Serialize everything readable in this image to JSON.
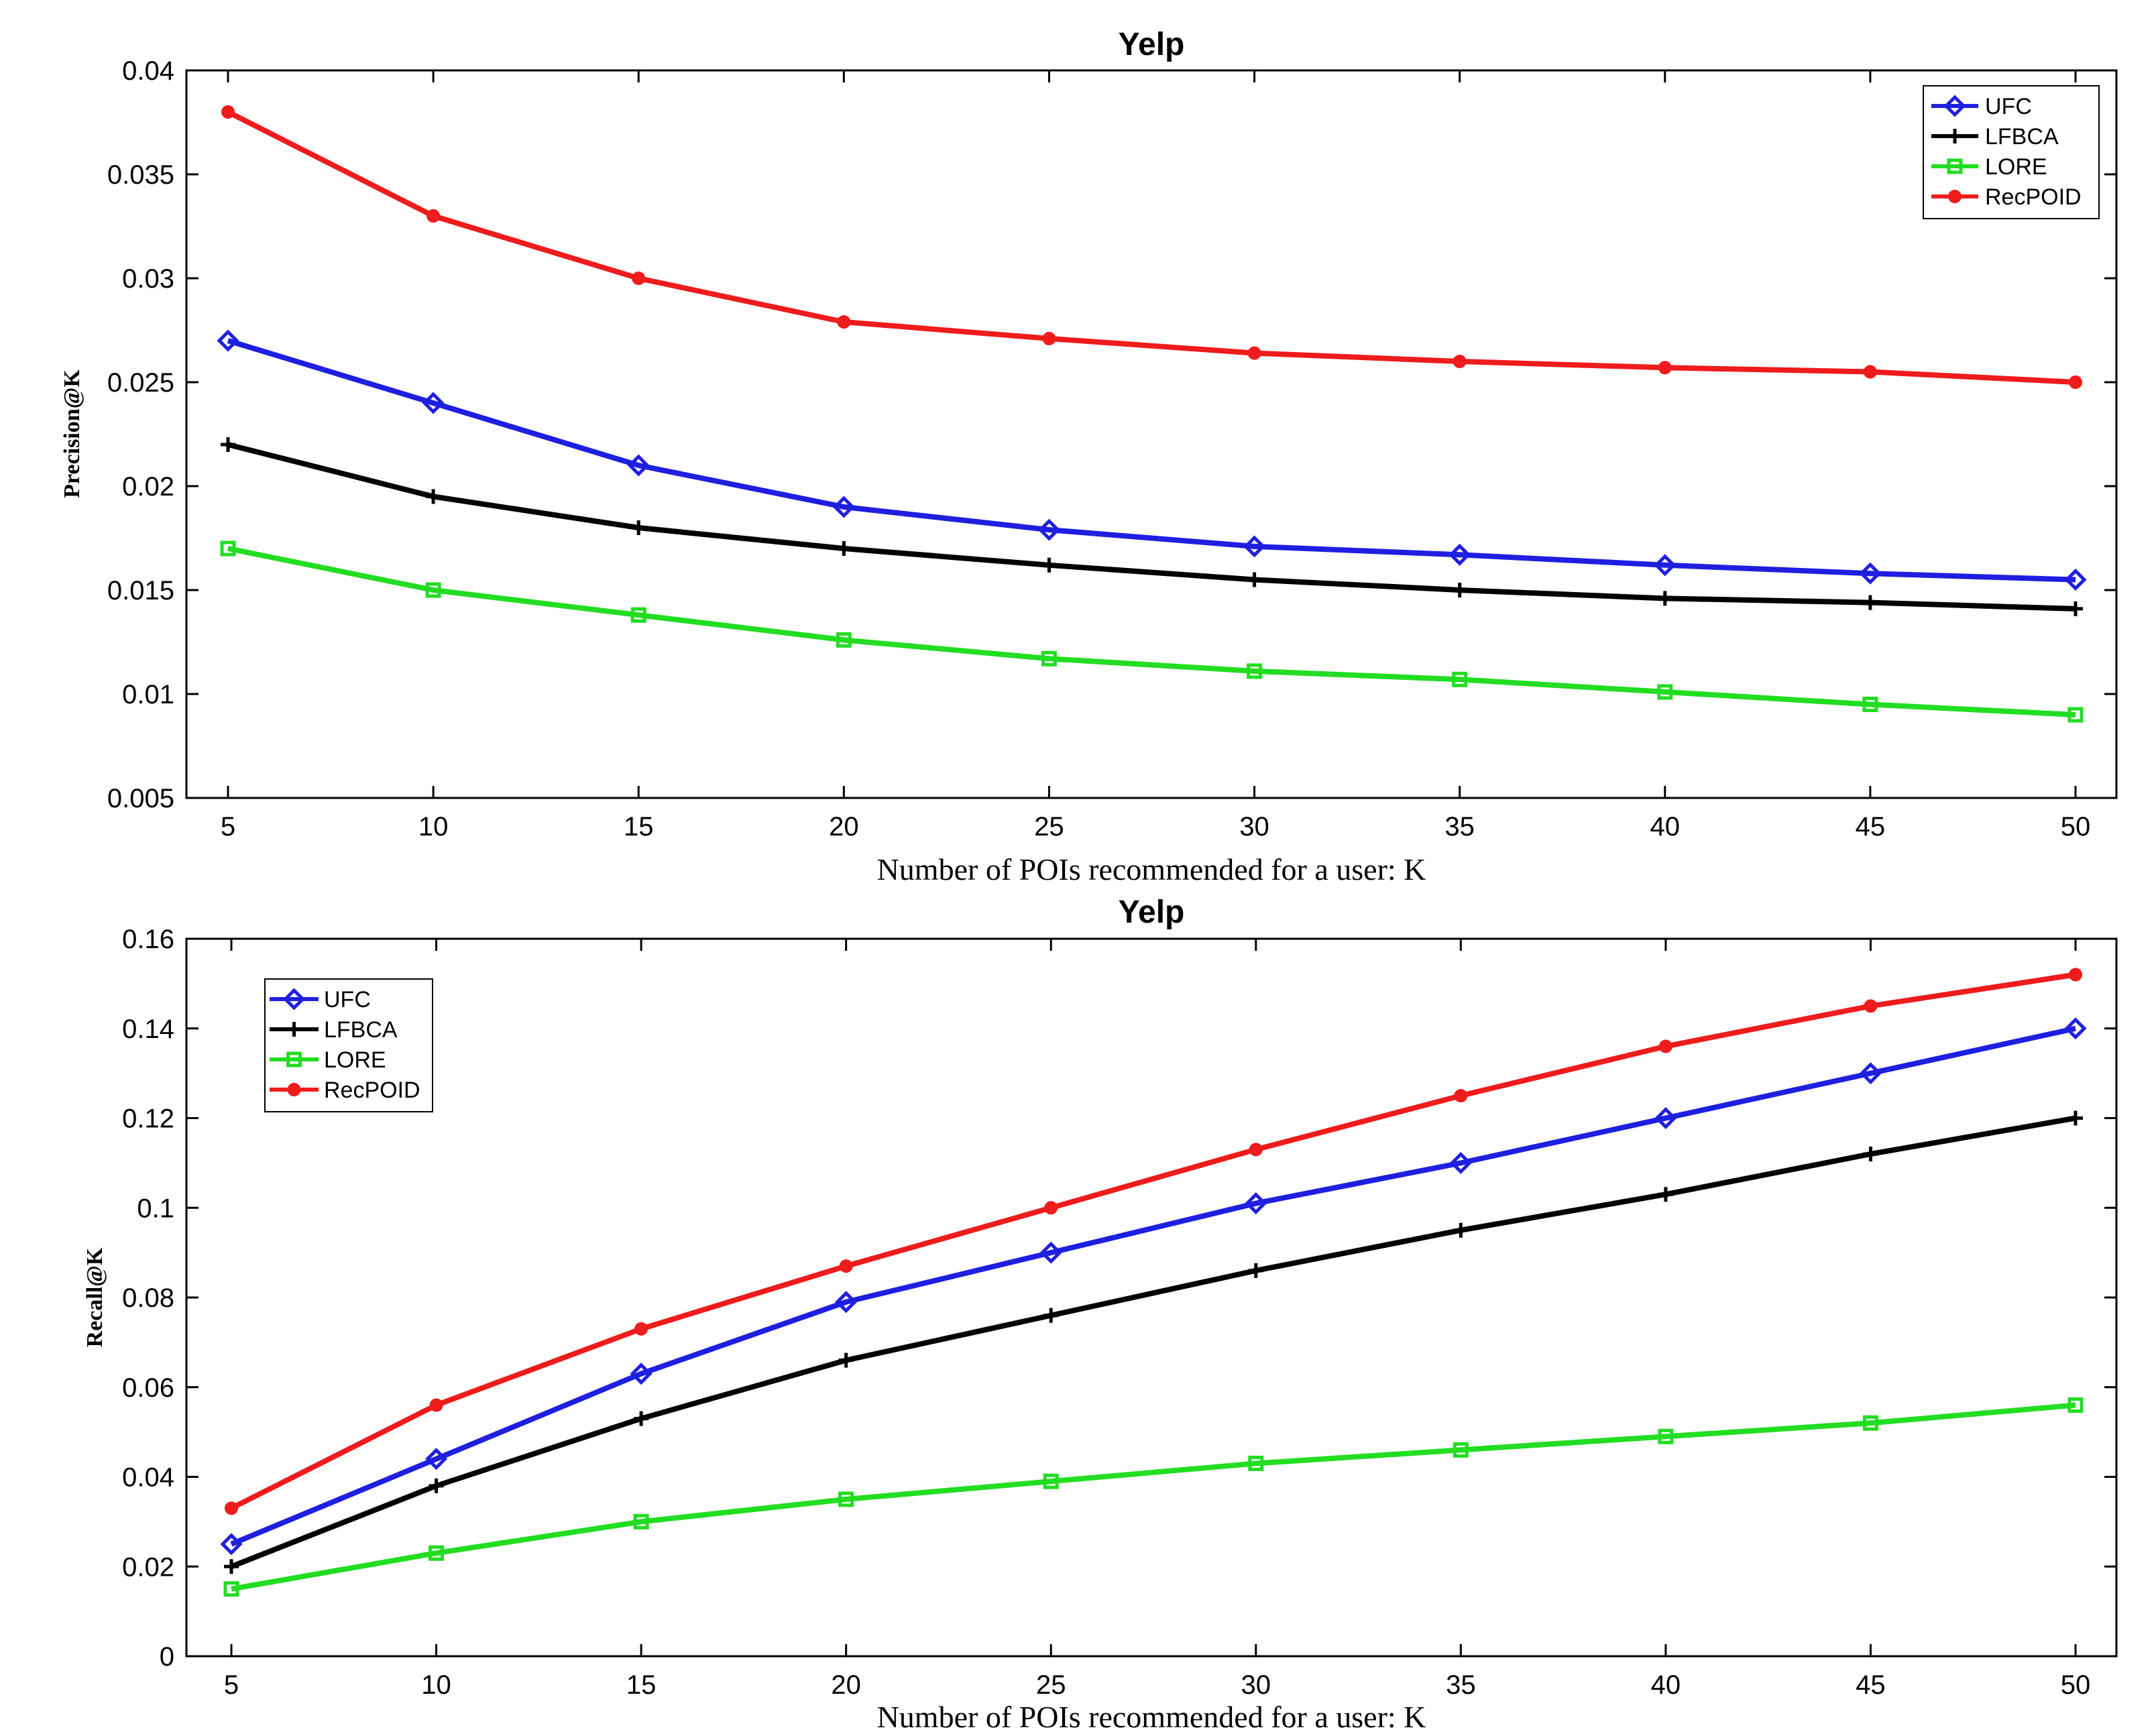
{
  "chart_data": [
    {
      "type": "line",
      "title": "Yelp",
      "xlabel": "Number of POIs recommended for a user: K",
      "ylabel": "Precision@K",
      "x": [
        5,
        10,
        15,
        20,
        25,
        30,
        35,
        40,
        45,
        50
      ],
      "xticks": [
        "5",
        "10",
        "15",
        "20",
        "25",
        "30",
        "35",
        "40",
        "45",
        "50"
      ],
      "ylim": [
        0.005,
        0.04
      ],
      "yticks": [
        0.005,
        0.01,
        0.015,
        0.02,
        0.025,
        0.03,
        0.035,
        0.04
      ],
      "ytick_labels": [
        "0.005",
        "0.01",
        "0.015",
        "0.02",
        "0.025",
        "0.03",
        "0.035",
        "0.04"
      ],
      "legend_position": "top-right",
      "series": [
        {
          "name": "UFC",
          "color": "#1f1fe0",
          "marker": "diamond",
          "values": [
            0.027,
            0.024,
            0.021,
            0.019,
            0.0179,
            0.0171,
            0.0167,
            0.0162,
            0.0158,
            0.0155
          ]
        },
        {
          "name": "LFBCA",
          "color": "#000000",
          "marker": "plus",
          "values": [
            0.022,
            0.0195,
            0.018,
            0.017,
            0.0162,
            0.0155,
            0.015,
            0.0146,
            0.0144,
            0.0141
          ]
        },
        {
          "name": "LORE",
          "color": "#22dd22",
          "marker": "square",
          "values": [
            0.017,
            0.015,
            0.0138,
            0.0126,
            0.0117,
            0.0111,
            0.0107,
            0.0101,
            0.0095,
            0.009
          ]
        },
        {
          "name": "RecPOID",
          "color": "#ee1c1c",
          "marker": "circle",
          "values": [
            0.038,
            0.033,
            0.03,
            0.0279,
            0.0271,
            0.0264,
            0.026,
            0.0257,
            0.0255,
            0.025
          ]
        }
      ]
    },
    {
      "type": "line",
      "title": "Yelp",
      "xlabel": "Number of POIs recommended for a user: K",
      "ylabel": "Recall@K",
      "x": [
        5,
        10,
        15,
        20,
        25,
        30,
        35,
        40,
        45,
        50
      ],
      "xticks": [
        "5",
        "10",
        "15",
        "20",
        "25",
        "30",
        "35",
        "40",
        "45",
        "50"
      ],
      "ylim": [
        0,
        0.16
      ],
      "yticks": [
        0,
        0.02,
        0.04,
        0.06,
        0.08,
        0.1,
        0.12,
        0.14,
        0.16
      ],
      "ytick_labels": [
        "0",
        "0.02",
        "0.04",
        "0.06",
        "0.08",
        "0.1",
        "0.12",
        "0.14",
        "0.16"
      ],
      "legend_position": "top-left",
      "series": [
        {
          "name": "UFC",
          "color": "#1f1fe0",
          "marker": "diamond",
          "values": [
            0.025,
            0.044,
            0.063,
            0.079,
            0.09,
            0.101,
            0.11,
            0.12,
            0.13,
            0.14
          ]
        },
        {
          "name": "LFBCA",
          "color": "#000000",
          "marker": "plus",
          "values": [
            0.02,
            0.038,
            0.053,
            0.066,
            0.076,
            0.086,
            0.095,
            0.103,
            0.112,
            0.12
          ]
        },
        {
          "name": "LORE",
          "color": "#22dd22",
          "marker": "square",
          "values": [
            0.015,
            0.023,
            0.03,
            0.035,
            0.039,
            0.043,
            0.046,
            0.049,
            0.052,
            0.056
          ]
        },
        {
          "name": "RecPOID",
          "color": "#ee1c1c",
          "marker": "circle",
          "values": [
            0.033,
            0.056,
            0.073,
            0.087,
            0.1,
            0.113,
            0.125,
            0.136,
            0.145,
            0.152
          ]
        }
      ]
    }
  ]
}
